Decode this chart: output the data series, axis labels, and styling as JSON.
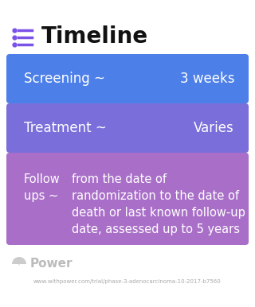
{
  "title": "Timeline",
  "background_color": "#ffffff",
  "icon_color": "#7b52e8",
  "title_color": "#111111",
  "title_fontsize": 20,
  "box_configs": [
    {
      "left_text": "Screening ~",
      "right_text": "3 weeks",
      "bg_color": "#4d7fe8",
      "multiline": false
    },
    {
      "left_text": "Treatment ~",
      "right_text": "Varies",
      "bg_color": "#7a6fda",
      "multiline": false
    },
    {
      "left_text": "Follow\nups ~",
      "right_text": "from the date of\nrandomization to the date of\ndeath or last known follow-up\ndate, assessed up to 5 years",
      "bg_color": "#a96fc8",
      "multiline": true
    }
  ],
  "footer_text": "Power",
  "footer_url": "www.withpower.com/trial/phase-3-adenocarcinoma-10-2017-b7560"
}
